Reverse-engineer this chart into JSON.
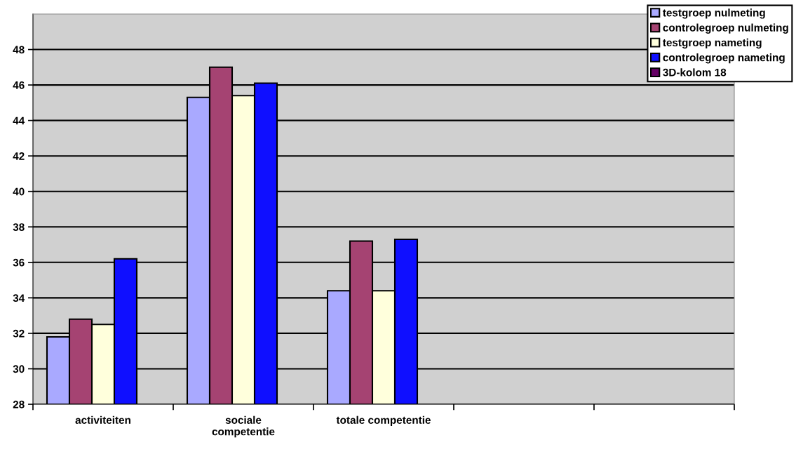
{
  "chart_data": {
    "type": "bar",
    "categories": [
      "activiteiten",
      "sociale\ncompetentie",
      "totale competentie",
      null,
      null
    ],
    "series": [
      {
        "name": "testgroep nulmeting",
        "color": "#a9a9ff",
        "values": [
          31.8,
          45.3,
          34.4,
          null,
          null
        ]
      },
      {
        "name": "controlegroep nulmeting",
        "color": "#a54372",
        "values": [
          32.8,
          47.0,
          37.2,
          null,
          null
        ]
      },
      {
        "name": "testgroep nameting",
        "color": "#ffffdc",
        "values": [
          32.5,
          45.4,
          34.4,
          null,
          null
        ]
      },
      {
        "name": "controlegroep nameting",
        "color": "#0f0fff",
        "values": [
          36.2,
          46.1,
          37.3,
          null,
          null
        ]
      },
      {
        "name": "3D-kolom 18",
        "color": "#660066",
        "values": [
          null,
          null,
          null,
          null,
          null
        ]
      }
    ],
    "ylim": [
      28,
      50
    ],
    "yticks": [
      28,
      30,
      32,
      34,
      36,
      38,
      40,
      42,
      44,
      46,
      48
    ],
    "grid": "y",
    "legend": "top right"
  }
}
